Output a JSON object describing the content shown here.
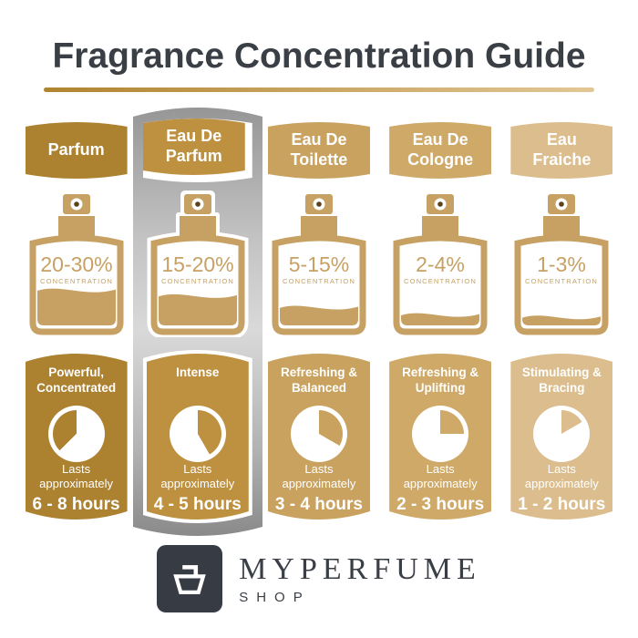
{
  "title": "Fragrance Concentration Guide",
  "columns": [
    {
      "label": "Parfum",
      "concentration": "20-30%",
      "concentration_label": "CONCENTRATION",
      "fill_percent": 43,
      "character": "Powerful, Concentrated",
      "lasts": "Lasts approximately",
      "duration": "6 - 8 hours",
      "color": "#AC8130",
      "pie_gold_start": 225,
      "pie_gold_end": 360,
      "highlighted": false
    },
    {
      "label": "Eau De Parfum",
      "concentration": "15-20%",
      "concentration_label": "CONCENTRATION",
      "fill_percent": 36,
      "character": "Intense",
      "lasts": "Lasts approximately",
      "duration": "4 - 5 hours",
      "color": "#BE9140",
      "pie_gold_start": 0,
      "pie_gold_end": 150,
      "highlighted": true
    },
    {
      "label": "Eau De Toilette",
      "concentration": "5-15%",
      "concentration_label": "CONCENTRATION",
      "fill_percent": 22,
      "character": "Refreshing & Balanced",
      "lasts": "Lasts approximately",
      "duration": "3 - 4 hours",
      "color": "#C9A25F",
      "pie_gold_start": 0,
      "pie_gold_end": 120,
      "highlighted": false
    },
    {
      "label": "Eau De Cologne",
      "concentration": "2-4%",
      "concentration_label": "CONCENTRATION",
      "fill_percent": 13,
      "character": "Refreshing & Uplifting",
      "lasts": "Lasts approximately",
      "duration": "2 - 3 hours",
      "color": "#CFA968",
      "pie_gold_start": 0,
      "pie_gold_end": 90,
      "highlighted": false
    },
    {
      "label": "Eau Fraiche",
      "concentration": "1-3%",
      "concentration_label": "CONCENTRATION",
      "fill_percent": 10,
      "character": "Stimulating & Bracing",
      "lasts": "Lasts approximately",
      "duration": "1 - 2 hours",
      "color": "#DCBE8E",
      "pie_gold_start": 0,
      "pie_gold_end": 60,
      "highlighted": false
    }
  ],
  "brand": {
    "name": "MYPERFUME",
    "sub": "SHOP"
  },
  "colors": {
    "bottle": "#C7A164",
    "bottle_dot": "#5A431A",
    "title_text": "#3A3F46",
    "underline_start": "#B0842F",
    "underline_end": "#E2C795",
    "strip_top": "#969696",
    "strip_mid": "#D9D9D9",
    "strip_bottom": "#8A8A8A",
    "logo_bg": "#363B44",
    "brand_text": "#3A3F46"
  }
}
